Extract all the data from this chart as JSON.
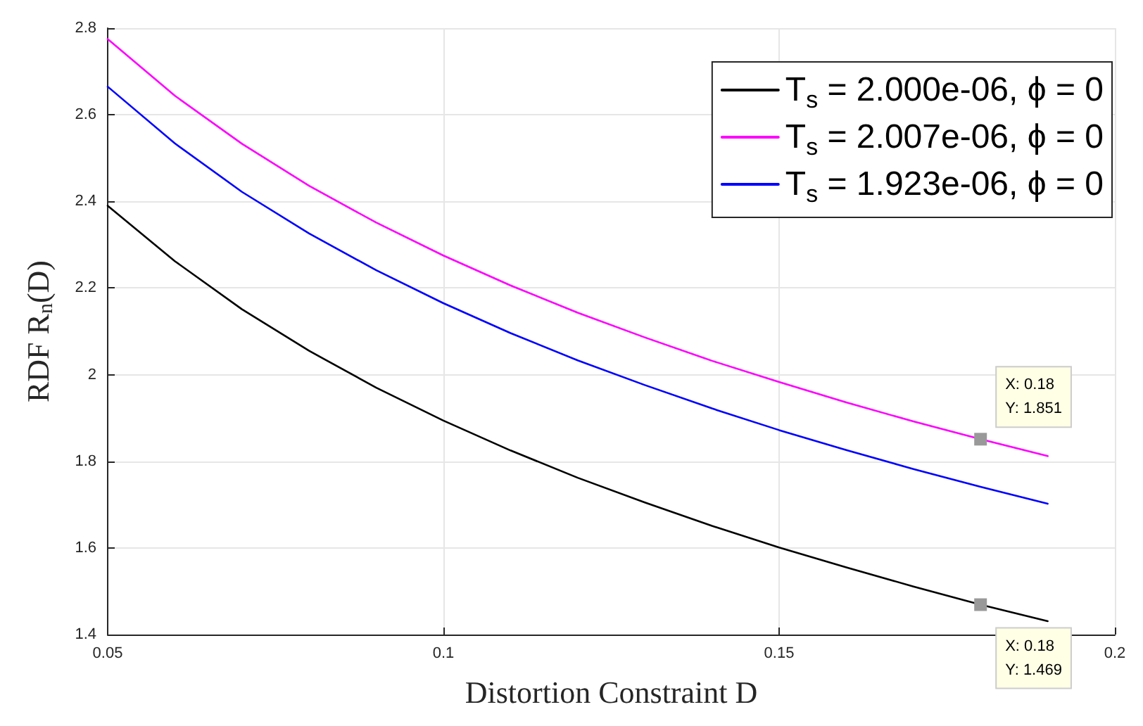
{
  "chart_data": {
    "type": "line",
    "xlabel": "Distortion Constraint D",
    "ylabel": "RDF R$_{n}$(D)",
    "x": [
      0.05,
      0.06,
      0.07,
      0.08,
      0.09,
      0.1,
      0.11,
      0.12,
      0.13,
      0.14,
      0.15,
      0.16,
      0.17,
      0.18,
      0.19
    ],
    "series": [
      {
        "name": "T$_{s}$ = 2.000e-06, ϕ = 0",
        "color": "#000000",
        "values": [
          2.39,
          2.262,
          2.151,
          2.055,
          1.97,
          1.894,
          1.825,
          1.762,
          1.705,
          1.651,
          1.601,
          1.555,
          1.511,
          1.469,
          1.431
        ]
      },
      {
        "name": "T$_{s}$ = 2.007e-06, ϕ = 0",
        "color": "#ff00ff",
        "values": [
          2.775,
          2.644,
          2.533,
          2.436,
          2.351,
          2.275,
          2.206,
          2.143,
          2.086,
          2.032,
          1.983,
          1.936,
          1.892,
          1.851,
          1.812
        ]
      },
      {
        "name": "T$_{s}$ = 1.923e-06, ϕ = 0",
        "color": "#0000ff",
        "values": [
          2.665,
          2.534,
          2.422,
          2.326,
          2.241,
          2.165,
          2.096,
          2.033,
          1.976,
          1.922,
          1.872,
          1.826,
          1.782,
          1.741,
          1.702
        ]
      }
    ],
    "annotations": [
      {
        "text": "X: 0.18\nY: 1.851",
        "x": 0.18,
        "y": 1.851
      },
      {
        "text": "X: 0.18\nY: 1.469",
        "x": 0.18,
        "y": 1.469
      }
    ],
    "xlim": [
      0.05,
      0.2
    ],
    "xticks": [
      0.05,
      0.1,
      0.15,
      0.2
    ],
    "ylim": [
      1.4,
      2.8
    ],
    "yticks": [
      1.4,
      1.6,
      1.8,
      2,
      2.2,
      2.4,
      2.6,
      2.8
    ],
    "grid": true,
    "legend": "top right",
    "marker": "none",
    "line_style": "solid"
  }
}
